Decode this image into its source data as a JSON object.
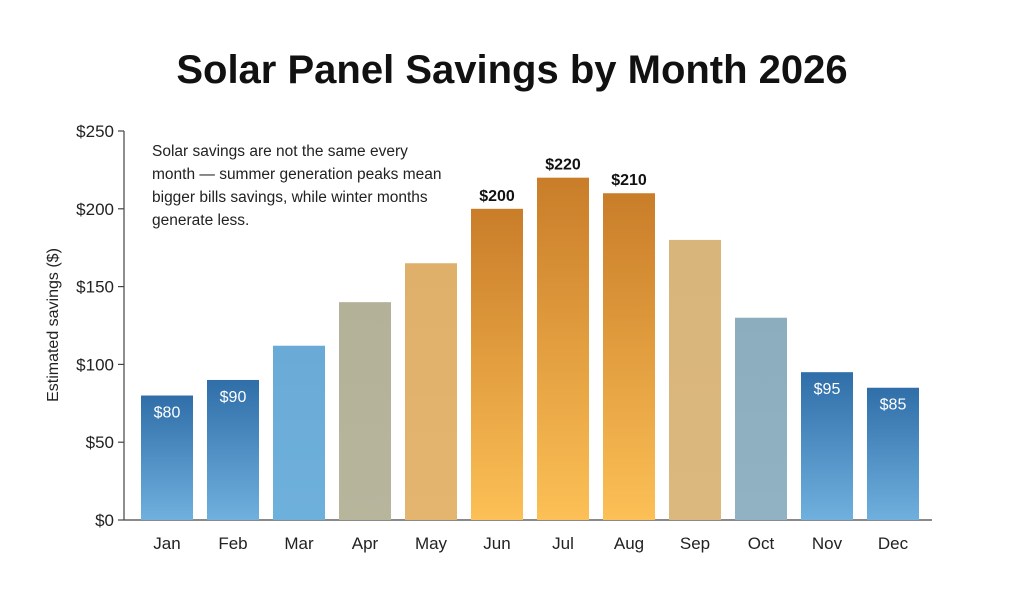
{
  "chart_data": {
    "type": "bar",
    "title": "Solar Panel Savings by Month 2026",
    "xlabel": "",
    "ylabel": "Estimated savings ($)",
    "ylim": [
      0,
      250
    ],
    "yticks": [
      "$0",
      "$50",
      "$100",
      "$150",
      "$200",
      "$250"
    ],
    "ytick_values": [
      0,
      50,
      100,
      150,
      200,
      250
    ],
    "grid": false,
    "categories": [
      "Jan",
      "Feb",
      "Mar",
      "Apr",
      "May",
      "Jun",
      "Jul",
      "Aug",
      "Sep",
      "Oct",
      "Nov",
      "Dec"
    ],
    "values": [
      80,
      90,
      112,
      140,
      165,
      200,
      220,
      210,
      180,
      130,
      95,
      85
    ],
    "data_labels": [
      "$80",
      "$90",
      "",
      "",
      "",
      "$200",
      "$220",
      "$210",
      "",
      "",
      "$95",
      "$85"
    ],
    "bar_colors": [
      [
        "#2f6ea8",
        "#6fb0de"
      ],
      [
        "#2f6ea8",
        "#6fb0de"
      ],
      [
        "#6aaad6",
        "#6eb0dc"
      ],
      [
        "#b3b197",
        "#b7b59c"
      ],
      [
        "#deb06a",
        "#e3b56f"
      ],
      [
        "#c97d29",
        "#fcc056"
      ],
      [
        "#c97d29",
        "#fcc056"
      ],
      [
        "#c97d29",
        "#fcc056"
      ],
      [
        "#d8b57a",
        "#dbb87e"
      ],
      [
        "#8badbe",
        "#91b2c2"
      ],
      [
        "#2f6ea8",
        "#6fb0de"
      ],
      [
        "#2f6ea8",
        "#6fb0de"
      ]
    ],
    "annotation": "Solar savings are not the same every month — summer generation peaks mean bigger bills savings, while winter months generate less."
  }
}
